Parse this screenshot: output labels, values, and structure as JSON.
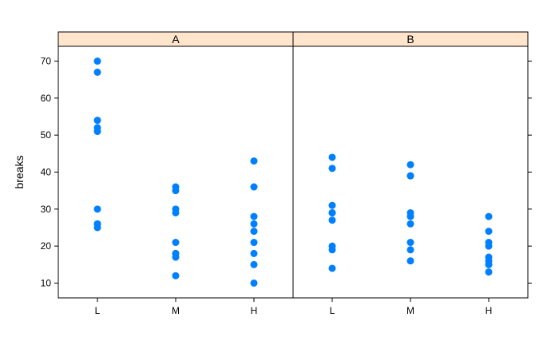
{
  "chart_data": {
    "type": "scatter",
    "ylabel": "breaks",
    "xlabel": "",
    "categories": [
      "L",
      "M",
      "H"
    ],
    "ylim": [
      6,
      74
    ],
    "yticks": [
      10,
      20,
      30,
      40,
      50,
      60,
      70
    ],
    "point_color": "#0080ff",
    "strip_color": "#ffe5cc",
    "panels": [
      {
        "strip_label": "A",
        "points": {
          "L": [
            26,
            30,
            54,
            25,
            70,
            52,
            51,
            26,
            67
          ],
          "M": [
            18,
            21,
            29,
            17,
            12,
            18,
            35,
            30,
            36
          ],
          "H": [
            36,
            21,
            24,
            18,
            10,
            43,
            28,
            15,
            26
          ]
        }
      },
      {
        "strip_label": "B",
        "points": {
          "L": [
            27,
            14,
            29,
            19,
            29,
            31,
            41,
            20,
            44
          ],
          "M": [
            42,
            26,
            19,
            16,
            39,
            28,
            21,
            39,
            29
          ],
          "H": [
            20,
            21,
            24,
            17,
            13,
            15,
            15,
            16,
            28
          ]
        }
      }
    ]
  }
}
